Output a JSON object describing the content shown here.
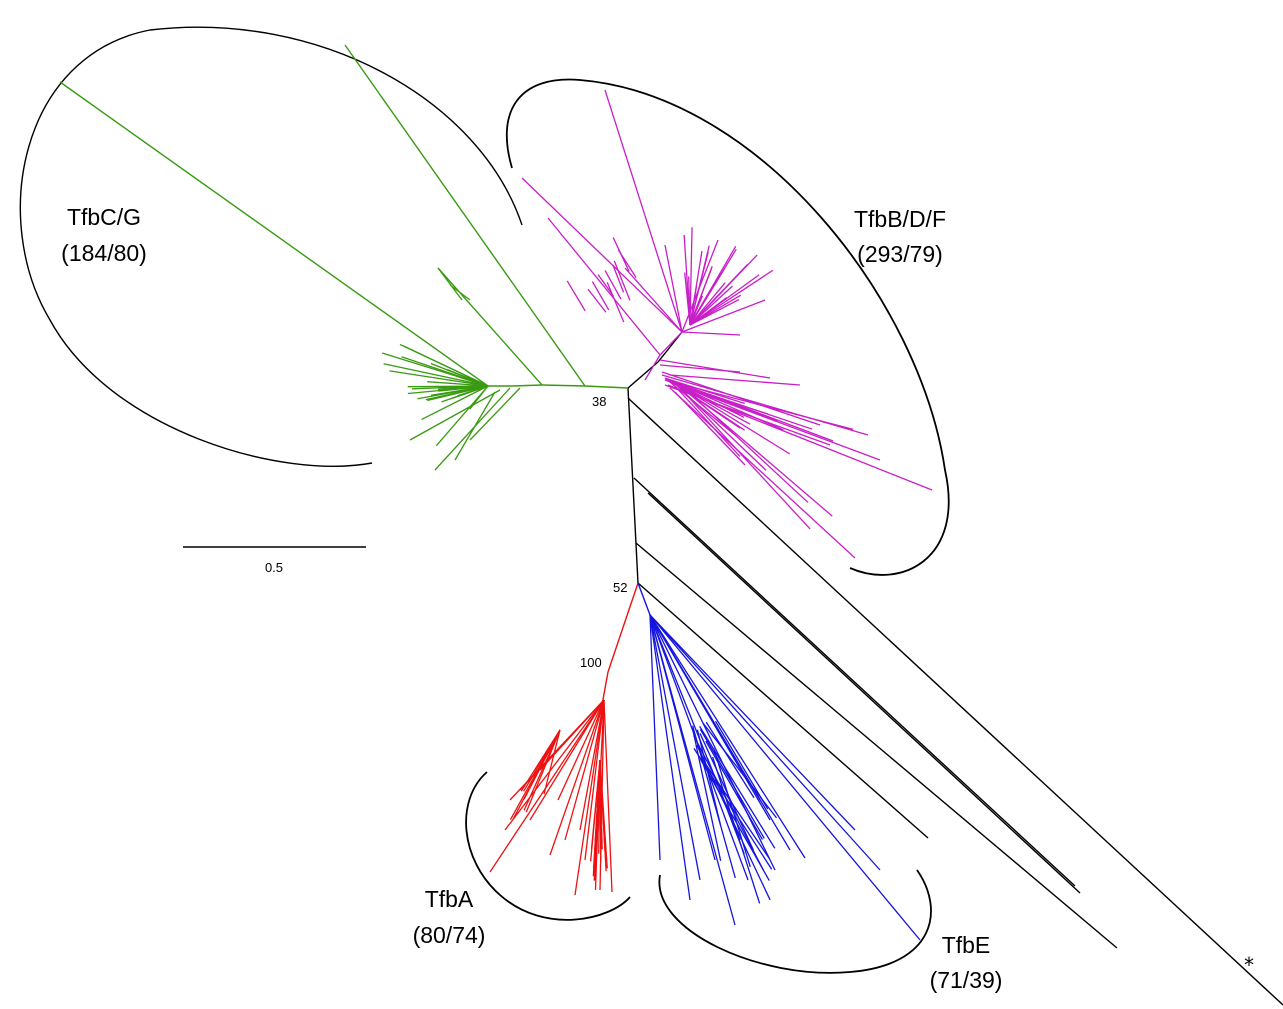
{
  "colors": {
    "tfbcg": "#3a9a12",
    "tfbbdf": "#c81ec8",
    "tfba": "#ee1111",
    "tfbe": "#1515dd",
    "backbone": "#000000"
  },
  "clades": {
    "tfbcg": {
      "name": "TfbC/G",
      "counts": "(184/80)"
    },
    "tfbbdf": {
      "name": "TfbB/D/F",
      "counts": "(293/79)"
    },
    "tfba": {
      "name": "TfbA",
      "counts": "(80/74)"
    },
    "tfbe": {
      "name": "TfbE",
      "counts": "(71/39)"
    }
  },
  "nodes": {
    "n38": "38",
    "n52": "52",
    "n100": "100"
  },
  "scale": {
    "label": "0.5"
  },
  "outgroup_marker": "*"
}
